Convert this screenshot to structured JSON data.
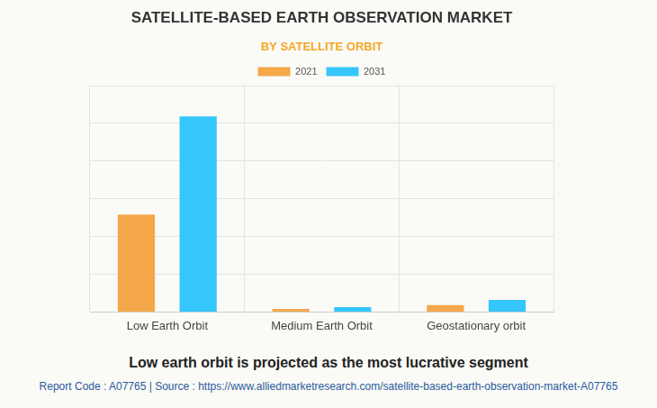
{
  "chart_data": {
    "type": "bar",
    "title": "SATELLITE-BASED EARTH OBSERVATION MARKET",
    "subtitle": "BY SATELLITE ORBIT",
    "categories": [
      "Low Earth Orbit",
      "Medium Earth Orbit",
      "Geostationary orbit"
    ],
    "series": [
      {
        "name": "2021",
        "color": "#f4a84a",
        "values": [
          2.58,
          0.08,
          0.18
        ]
      },
      {
        "name": "2031",
        "color": "#35c6fb",
        "values": [
          5.18,
          0.13,
          0.32
        ]
      }
    ],
    "ylim": [
      0,
      6
    ],
    "yticks": [
      0,
      1,
      2,
      3,
      4,
      5,
      6
    ],
    "grid": true,
    "legend": "top",
    "tick_labels": "x",
    "annotations": [
      "Low earth orbit is projected as the most lucrative segment",
      "Report Code : A07765  |  Source : https://www.alliedmarketresearch.com/satellite-based-earth-observation-market-A07765"
    ]
  }
}
